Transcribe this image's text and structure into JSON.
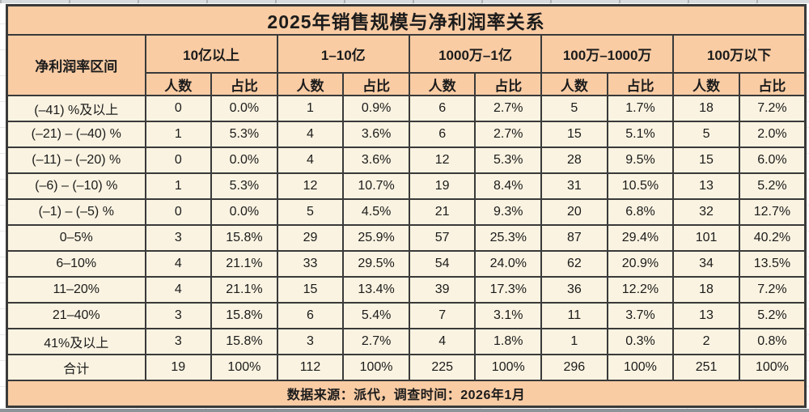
{
  "title": "2025年销售规模与净利润率关系",
  "footer_note": "数据来源：派代，调查时间：2026年1月",
  "colors": {
    "header_bg": "#f9cca4",
    "cell_bg": "#faf3e1",
    "border_color": "#3a3a3a",
    "text_color": "#1b1b1b"
  },
  "table": {
    "row_header_label": "净利润率区间",
    "group_headers": [
      "10亿以上",
      "1–10亿",
      "1000万–1亿",
      "100万–1000万",
      "100万以下"
    ],
    "sub_headers": [
      "人数",
      "占比"
    ],
    "rows": [
      {
        "label": "(–41) %及以上",
        "values": [
          "0",
          "0.0%",
          "1",
          "0.9%",
          "6",
          "2.7%",
          "5",
          "1.7%",
          "18",
          "7.2%"
        ]
      },
      {
        "label": "(–21) – (–40) %",
        "values": [
          "1",
          "5.3%",
          "4",
          "3.6%",
          "6",
          "2.7%",
          "15",
          "5.1%",
          "5",
          "2.0%"
        ]
      },
      {
        "label": "(–11) – (–20) %",
        "values": [
          "0",
          "0.0%",
          "4",
          "3.6%",
          "12",
          "5.3%",
          "28",
          "9.5%",
          "15",
          "6.0%"
        ]
      },
      {
        "label": "(–6) – (–10) %",
        "values": [
          "1",
          "5.3%",
          "12",
          "10.7%",
          "19",
          "8.4%",
          "31",
          "10.5%",
          "13",
          "5.2%"
        ]
      },
      {
        "label": "(–1) – (–5) %",
        "values": [
          "0",
          "0.0%",
          "5",
          "4.5%",
          "21",
          "9.3%",
          "20",
          "6.8%",
          "32",
          "12.7%"
        ]
      },
      {
        "label": "0–5%",
        "values": [
          "3",
          "15.8%",
          "29",
          "25.9%",
          "57",
          "25.3%",
          "87",
          "29.4%",
          "101",
          "40.2%"
        ]
      },
      {
        "label": "6–10%",
        "values": [
          "4",
          "21.1%",
          "33",
          "29.5%",
          "54",
          "24.0%",
          "62",
          "20.9%",
          "34",
          "13.5%"
        ]
      },
      {
        "label": "11–20%",
        "values": [
          "4",
          "21.1%",
          "15",
          "13.4%",
          "39",
          "17.3%",
          "36",
          "12.2%",
          "18",
          "7.2%"
        ]
      },
      {
        "label": "21–40%",
        "values": [
          "3",
          "15.8%",
          "6",
          "5.4%",
          "7",
          "3.1%",
          "11",
          "3.7%",
          "13",
          "5.2%"
        ]
      },
      {
        "label": "41%及以上",
        "values": [
          "3",
          "15.8%",
          "3",
          "2.7%",
          "4",
          "1.8%",
          "1",
          "0.3%",
          "2",
          "0.8%"
        ]
      }
    ],
    "total_row": {
      "label": "合计",
      "values": [
        "19",
        "100%",
        "112",
        "100%",
        "225",
        "100%",
        "296",
        "100%",
        "251",
        "100%"
      ]
    }
  },
  "chart_data": {
    "type": "table",
    "title": "2025年销售规模与净利润率关系",
    "row_axis_label": "净利润率区间",
    "categories": [
      "(–41) %及以上",
      "(–21) – (–40) %",
      "(–11) – (–20) %",
      "(–6) – (–10) %",
      "(–1) – (–5) %",
      "0–5%",
      "6–10%",
      "11–20%",
      "21–40%",
      "41%及以上"
    ],
    "value_columns": [
      "人数",
      "占比"
    ],
    "series": [
      {
        "name": "10亿以上",
        "counts": [
          0,
          1,
          0,
          1,
          0,
          3,
          4,
          4,
          3,
          3
        ],
        "percents": [
          "0.0%",
          "5.3%",
          "0.0%",
          "5.3%",
          "0.0%",
          "15.8%",
          "21.1%",
          "21.1%",
          "15.8%",
          "15.8%"
        ],
        "total_count": 19,
        "total_percent": "100%"
      },
      {
        "name": "1–10亿",
        "counts": [
          1,
          4,
          4,
          12,
          5,
          29,
          33,
          15,
          6,
          3
        ],
        "percents": [
          "0.9%",
          "3.6%",
          "3.6%",
          "10.7%",
          "4.5%",
          "25.9%",
          "29.5%",
          "13.4%",
          "5.4%",
          "2.7%"
        ],
        "total_count": 112,
        "total_percent": "100%"
      },
      {
        "name": "1000万–1亿",
        "counts": [
          6,
          6,
          12,
          19,
          21,
          57,
          54,
          39,
          7,
          4
        ],
        "percents": [
          "2.7%",
          "2.7%",
          "5.3%",
          "8.4%",
          "9.3%",
          "25.3%",
          "24.0%",
          "17.3%",
          "3.1%",
          "1.8%"
        ],
        "total_count": 225,
        "total_percent": "100%"
      },
      {
        "name": "100万–1000万",
        "counts": [
          5,
          15,
          28,
          31,
          20,
          87,
          62,
          36,
          11,
          1
        ],
        "percents": [
          "1.7%",
          "5.1%",
          "9.5%",
          "10.5%",
          "6.8%",
          "29.4%",
          "20.9%",
          "12.2%",
          "3.7%",
          "0.3%"
        ],
        "total_count": 296,
        "total_percent": "100%"
      },
      {
        "name": "100万以下",
        "counts": [
          18,
          5,
          15,
          13,
          32,
          101,
          34,
          18,
          13,
          2
        ],
        "percents": [
          "7.2%",
          "2.0%",
          "6.0%",
          "5.2%",
          "12.7%",
          "40.2%",
          "13.5%",
          "7.2%",
          "5.2%",
          "0.8%"
        ],
        "total_count": 251,
        "total_percent": "100%"
      }
    ],
    "total_row_label": "合计",
    "source_note": "数据来源：派代，调查时间：2026年1月"
  }
}
